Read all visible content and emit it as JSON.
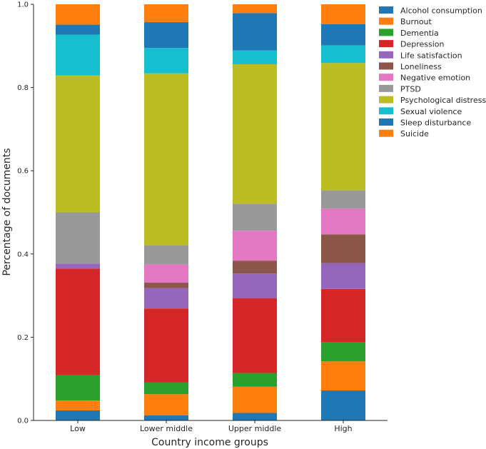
{
  "chart_data": {
    "type": "bar",
    "stacked": true,
    "xlabel": "Country income groups",
    "ylabel": "Percentage of documents",
    "ylim": [
      0,
      1
    ],
    "yticks": [
      "0.0",
      "0.2",
      "0.4",
      "0.6",
      "0.8",
      "1.0"
    ],
    "legend_position": "upper right, outside plot",
    "categories": [
      "Low",
      "Lower middle",
      "Upper middle",
      "High"
    ],
    "series": [
      {
        "name": "Alcohol consumption",
        "color": "#1f77b4",
        "values": [
          0.024,
          0.012,
          0.018,
          0.072
        ]
      },
      {
        "name": "Burnout",
        "color": "#ff7f0e",
        "values": [
          0.024,
          0.051,
          0.063,
          0.07
        ]
      },
      {
        "name": "Dementia",
        "color": "#2ca02c",
        "values": [
          0.061,
          0.028,
          0.033,
          0.046
        ]
      },
      {
        "name": "Depression",
        "color": "#d62728",
        "values": [
          0.256,
          0.178,
          0.18,
          0.128
        ]
      },
      {
        "name": "Life satisfaction",
        "color": "#9467bd",
        "values": [
          0.012,
          0.049,
          0.059,
          0.062
        ]
      },
      {
        "name": "Loneliness",
        "color": "#8c564b",
        "values": [
          0.0,
          0.013,
          0.031,
          0.069
        ]
      },
      {
        "name": "Negative emotion",
        "color": "#e377c2",
        "values": [
          0.0,
          0.044,
          0.072,
          0.062
        ]
      },
      {
        "name": "PTSD",
        "color": "#999999",
        "values": [
          0.123,
          0.046,
          0.065,
          0.044
        ]
      },
      {
        "name": "Psychological distress",
        "color": "#bcbd22",
        "values": [
          0.329,
          0.413,
          0.335,
          0.306
        ]
      },
      {
        "name": "Sexual violence",
        "color": "#17becf",
        "values": [
          0.098,
          0.061,
          0.033,
          0.042
        ]
      },
      {
        "name": "Sleep disturbance",
        "color": "#1f77b4",
        "values": [
          0.024,
          0.062,
          0.09,
          0.051
        ]
      },
      {
        "name": "Suicide",
        "color": "#ff7f0e",
        "values": [
          0.049,
          0.043,
          0.021,
          0.048
        ]
      }
    ]
  }
}
